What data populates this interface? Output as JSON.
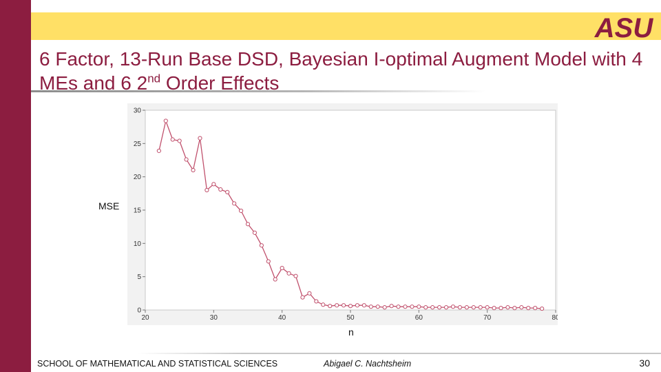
{
  "slide": {
    "title_part1": "6 Factor, 13-Run Base DSD, Bayesian I-optimal Augment Model with 4 MEs and 6 2",
    "title_sup": "nd",
    "title_part2": " Order Effects",
    "logo_text": "ASU",
    "footer_school": "SCHOOL OF MATHEMATICAL AND STATISTICAL SCIENCES",
    "footer_author": "Abigael C. Nachtsheim",
    "page_number": "30"
  },
  "colors": {
    "maroon": "#8c1d40",
    "gold": "#ffe066",
    "series": "#c0506c"
  },
  "chart_data": {
    "type": "line",
    "xlabel": "n",
    "ylabel": "MSE",
    "xlim": [
      20,
      80
    ],
    "ylim": [
      0,
      30
    ],
    "xticks": [
      20,
      30,
      40,
      50,
      60,
      70,
      80
    ],
    "yticks": [
      0,
      5,
      10,
      15,
      20,
      25,
      30
    ],
    "grid": false,
    "x": [
      22,
      23,
      24,
      25,
      26,
      27,
      28,
      29,
      30,
      31,
      32,
      33,
      34,
      35,
      36,
      37,
      38,
      39,
      40,
      41,
      42,
      43,
      44,
      45,
      46,
      47,
      48,
      49,
      50,
      51,
      52,
      53,
      54,
      55,
      56,
      57,
      58,
      59,
      60,
      61,
      62,
      63,
      64,
      65,
      66,
      67,
      68,
      69,
      70,
      71,
      72,
      73,
      74,
      75,
      76,
      77,
      78
    ],
    "y": [
      23.9,
      28.4,
      25.6,
      25.4,
      22.6,
      21.0,
      25.8,
      18.0,
      18.9,
      18.1,
      17.7,
      16.0,
      14.9,
      12.9,
      11.6,
      9.7,
      7.3,
      4.6,
      6.3,
      5.5,
      5.1,
      1.9,
      2.5,
      1.3,
      0.8,
      0.6,
      0.7,
      0.7,
      0.6,
      0.7,
      0.7,
      0.5,
      0.5,
      0.4,
      0.6,
      0.5,
      0.5,
      0.5,
      0.5,
      0.4,
      0.4,
      0.4,
      0.4,
      0.5,
      0.4,
      0.4,
      0.4,
      0.4,
      0.4,
      0.3,
      0.3,
      0.4,
      0.3,
      0.4,
      0.3,
      0.3,
      0.2
    ]
  }
}
